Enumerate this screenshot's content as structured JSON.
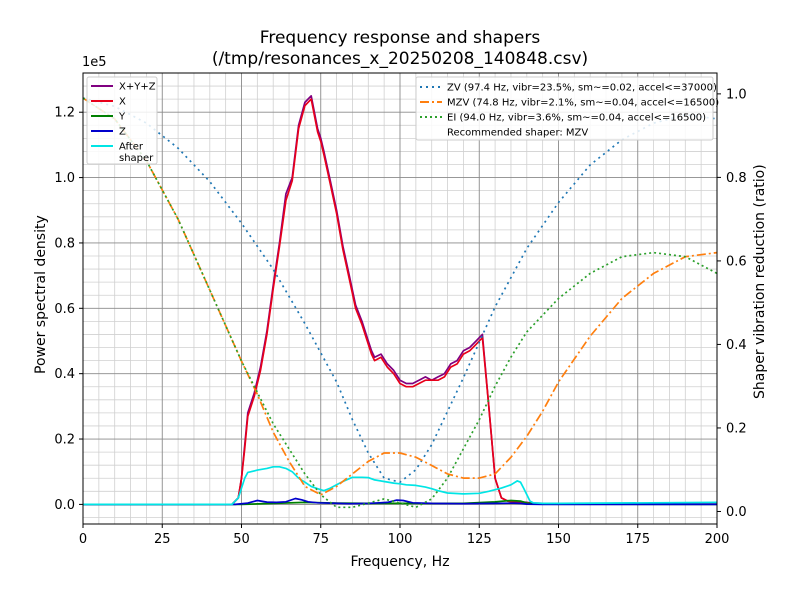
{
  "chart_data": {
    "type": "line",
    "title": "Frequency response and shapers",
    "subtitle": "(/tmp/resonances_x_20250208_140848.csv)",
    "xlabel": "Frequency, Hz",
    "ylabel": "Power spectral density",
    "y2label": "Shaper vibration reduction (ratio)",
    "y_scale_label": "1e5",
    "xlim": [
      0,
      200
    ],
    "ylim": [
      -0.06,
      1.32
    ],
    "y2lim": [
      -0.03,
      1.05
    ],
    "x_ticks": [
      "0",
      "25",
      "50",
      "75",
      "100",
      "125",
      "150",
      "175",
      "200"
    ],
    "y_ticks": [
      "0.0",
      "0.2",
      "0.4",
      "0.6",
      "0.8",
      "1.0",
      "1.2"
    ],
    "y2_ticks": [
      "0.0",
      "0.2",
      "0.4",
      "0.6",
      "0.8",
      "1.0"
    ],
    "grid": true,
    "legend_left": [
      "X+Y+Z",
      "X",
      "Y",
      "Z",
      "After shaper"
    ],
    "legend_right": [
      "ZV (97.4 Hz, vibr=23.5%, sm~=0.02, accel<=37000)",
      "MZV (74.8 Hz, vibr=2.1%, sm~=0.04, accel<=16500)",
      "EI (94.0 Hz, vibr=3.6%, sm~=0.04, accel<=16500)",
      "Recommended shaper: MZV"
    ],
    "series": [
      {
        "name": "X+Y+Z",
        "color": "#800080",
        "axis": "left",
        "x": [
          0,
          45,
          47,
          49,
          50,
          51,
          52,
          54,
          56,
          58,
          60,
          62,
          64,
          66,
          68,
          70,
          72,
          74,
          75,
          76,
          78,
          80,
          82,
          84,
          86,
          88,
          90,
          91,
          92,
          94,
          96,
          98,
          100,
          102,
          104,
          106,
          108,
          110,
          112,
          114,
          116,
          118,
          120,
          122,
          124,
          126,
          128,
          130,
          132,
          134,
          136,
          138,
          139,
          140,
          141,
          142,
          145,
          150,
          155,
          160,
          170,
          180,
          190,
          200
        ],
        "y": [
          0,
          0,
          0,
          0.02,
          0.08,
          0.18,
          0.28,
          0.34,
          0.42,
          0.53,
          0.67,
          0.8,
          0.95,
          1.0,
          1.16,
          1.23,
          1.25,
          1.15,
          1.12,
          1.08,
          0.99,
          0.9,
          0.79,
          0.7,
          0.61,
          0.56,
          0.5,
          0.47,
          0.45,
          0.46,
          0.43,
          0.41,
          0.38,
          0.37,
          0.37,
          0.38,
          0.39,
          0.38,
          0.39,
          0.4,
          0.43,
          0.44,
          0.47,
          0.48,
          0.5,
          0.52,
          0.3,
          0.08,
          0.02,
          0.01,
          0.008,
          0.008,
          0.007,
          0.006,
          0.005,
          0.004,
          0.003,
          0.002,
          0.001,
          0.001,
          0.001,
          0.001,
          0.001,
          0.001
        ]
      },
      {
        "name": "X",
        "color": "#e8001a",
        "axis": "left",
        "x": [
          0,
          45,
          47,
          49,
          50,
          51,
          52,
          54,
          56,
          58,
          60,
          62,
          64,
          66,
          68,
          70,
          72,
          74,
          75,
          76,
          78,
          80,
          82,
          84,
          86,
          88,
          90,
          91,
          92,
          94,
          96,
          98,
          100,
          102,
          104,
          106,
          108,
          110,
          112,
          114,
          116,
          118,
          120,
          122,
          124,
          126,
          128,
          130,
          132,
          134,
          136,
          138,
          139,
          140,
          141,
          142,
          145,
          150,
          155,
          160,
          170,
          180,
          190,
          200
        ],
        "y": [
          0,
          0,
          0,
          0.02,
          0.08,
          0.17,
          0.27,
          0.33,
          0.41,
          0.52,
          0.66,
          0.79,
          0.93,
          0.99,
          1.15,
          1.22,
          1.24,
          1.14,
          1.11,
          1.07,
          0.98,
          0.89,
          0.78,
          0.69,
          0.6,
          0.55,
          0.49,
          0.46,
          0.44,
          0.45,
          0.42,
          0.4,
          0.37,
          0.36,
          0.36,
          0.37,
          0.38,
          0.38,
          0.38,
          0.39,
          0.42,
          0.43,
          0.46,
          0.47,
          0.49,
          0.51,
          0.3,
          0.08,
          0.02,
          0.01,
          0.007,
          0.007,
          0.006,
          0.005,
          0.004,
          0.003,
          0.002,
          0.001,
          0.001,
          0.001,
          0.001,
          0.001,
          0.001,
          0.001
        ]
      },
      {
        "name": "Y",
        "color": "#008000",
        "axis": "left",
        "x": [
          0,
          50,
          60,
          70,
          80,
          90,
          100,
          110,
          120,
          130,
          135,
          138,
          140,
          145,
          200
        ],
        "y": [
          0,
          0,
          0.003,
          0.006,
          0.004,
          0.003,
          0.003,
          0.003,
          0.003,
          0.008,
          0.012,
          0.01,
          0.004,
          0.001,
          0
        ]
      },
      {
        "name": "Z",
        "color": "#0000cc",
        "axis": "left",
        "x": [
          0,
          48,
          52,
          55,
          58,
          61,
          64,
          67,
          69,
          71,
          74,
          78,
          84,
          90,
          96,
          99,
          101,
          104,
          110,
          120,
          130,
          136,
          138,
          140,
          145,
          200
        ],
        "y": [
          0,
          0,
          0.004,
          0.012,
          0.007,
          0.006,
          0.008,
          0.018,
          0.014,
          0.008,
          0.005,
          0.004,
          0.002,
          0.003,
          0.006,
          0.013,
          0.012,
          0.005,
          0.003,
          0.002,
          0.003,
          0.004,
          0.003,
          0.001,
          0,
          0
        ]
      },
      {
        "name": "After shaper",
        "color": "#00e5e5",
        "axis": "left",
        "x": [
          0,
          47,
          49,
          50,
          51,
          52,
          53,
          55,
          58,
          60,
          62,
          64,
          66,
          68,
          70,
          72,
          74,
          76,
          78,
          80,
          82,
          85,
          88,
          90,
          92,
          95,
          98,
          100,
          102,
          105,
          108,
          110,
          112,
          115,
          120,
          125,
          128,
          132,
          135,
          137,
          138,
          139,
          140,
          141,
          142,
          145,
          150,
          200
        ],
        "y": [
          0,
          0,
          0.02,
          0.05,
          0.08,
          0.098,
          0.1,
          0.105,
          0.11,
          0.115,
          0.115,
          0.11,
          0.1,
          0.08,
          0.068,
          0.055,
          0.048,
          0.042,
          0.05,
          0.06,
          0.07,
          0.083,
          0.083,
          0.082,
          0.075,
          0.07,
          0.065,
          0.063,
          0.06,
          0.058,
          0.053,
          0.048,
          0.042,
          0.035,
          0.032,
          0.034,
          0.04,
          0.05,
          0.06,
          0.072,
          0.068,
          0.05,
          0.03,
          0.01,
          0.005,
          0.003,
          0.003,
          0.006
        ]
      },
      {
        "name": "ZV (97.4 Hz, vibr=23.5%, sm~=0.02, accel<=37000)",
        "color": "#1f77b4",
        "axis": "right",
        "dash": "2,4",
        "x": [
          0,
          10,
          20,
          30,
          40,
          50,
          60,
          70,
          80,
          85,
          90,
          95,
          100,
          105,
          110,
          120,
          130,
          140,
          150,
          160,
          170,
          180,
          190,
          200
        ],
        "y": [
          0.99,
          0.97,
          0.93,
          0.87,
          0.79,
          0.69,
          0.58,
          0.45,
          0.31,
          0.22,
          0.14,
          0.08,
          0.07,
          0.1,
          0.16,
          0.32,
          0.49,
          0.63,
          0.74,
          0.83,
          0.89,
          0.93,
          0.95,
          0.94
        ]
      },
      {
        "name": "MZV (74.8 Hz, vibr=2.1%, sm~=0.04, accel<=16500)",
        "color": "#ff7f0e",
        "axis": "right",
        "dash": "9,3,2,3",
        "x": [
          0,
          10,
          20,
          30,
          40,
          50,
          55,
          60,
          65,
          70,
          75,
          80,
          85,
          90,
          95,
          100,
          105,
          110,
          115,
          120,
          125,
          130,
          135,
          140,
          145,
          150,
          160,
          170,
          180,
          190,
          200
        ],
        "y": [
          0.99,
          0.94,
          0.84,
          0.7,
          0.53,
          0.36,
          0.28,
          0.19,
          0.12,
          0.06,
          0.04,
          0.06,
          0.09,
          0.12,
          0.14,
          0.14,
          0.13,
          0.11,
          0.09,
          0.08,
          0.08,
          0.09,
          0.13,
          0.18,
          0.24,
          0.31,
          0.42,
          0.51,
          0.57,
          0.61,
          0.62
        ]
      },
      {
        "name": "EI (94.0 Hz, vibr=3.6%, sm~=0.04, accel<=16500)",
        "color": "#2ca02c",
        "axis": "right",
        "dash": "2,3",
        "x": [
          0,
          10,
          20,
          30,
          40,
          50,
          60,
          70,
          75,
          80,
          85,
          90,
          95,
          100,
          105,
          110,
          115,
          120,
          125,
          130,
          135,
          140,
          150,
          160,
          170,
          180,
          190,
          200
        ],
        "y": [
          0.99,
          0.94,
          0.84,
          0.7,
          0.53,
          0.36,
          0.21,
          0.09,
          0.04,
          0.01,
          0.01,
          0.02,
          0.03,
          0.02,
          0.01,
          0.03,
          0.08,
          0.15,
          0.22,
          0.3,
          0.37,
          0.43,
          0.51,
          0.57,
          0.61,
          0.62,
          0.61,
          0.57
        ]
      }
    ]
  }
}
